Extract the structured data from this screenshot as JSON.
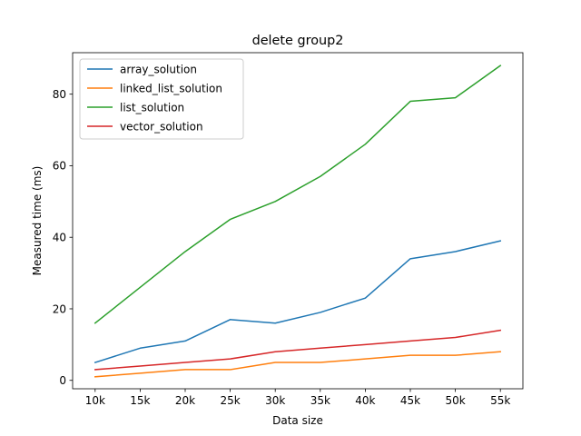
{
  "chart_data": {
    "type": "line",
    "title": "delete group2",
    "xlabel": "Data size",
    "ylabel": "Measured time (ms)",
    "categories": [
      "10k",
      "15k",
      "20k",
      "25k",
      "30k",
      "35k",
      "40k",
      "45k",
      "50k",
      "55k"
    ],
    "ylim": [
      -2.35,
      91.6
    ],
    "yticks": [
      0,
      20,
      40,
      60,
      80
    ],
    "grid": false,
    "legend_position": "top-left",
    "series": [
      {
        "name": "array_solution",
        "color": "#1f77b4",
        "values": [
          5,
          9,
          11,
          17,
          16,
          19,
          23,
          34,
          36,
          39
        ]
      },
      {
        "name": "linked_list_solution",
        "color": "#ff7f0e",
        "values": [
          1,
          2,
          3,
          3,
          5,
          5,
          6,
          7,
          7,
          8
        ]
      },
      {
        "name": "list_solution",
        "color": "#2ca02c",
        "values": [
          16,
          26,
          36,
          45,
          50,
          57,
          66,
          78,
          79,
          88
        ]
      },
      {
        "name": "vector_solution",
        "color": "#d62728",
        "values": [
          3,
          4,
          5,
          6,
          8,
          9,
          10,
          11,
          12,
          14
        ]
      }
    ]
  }
}
